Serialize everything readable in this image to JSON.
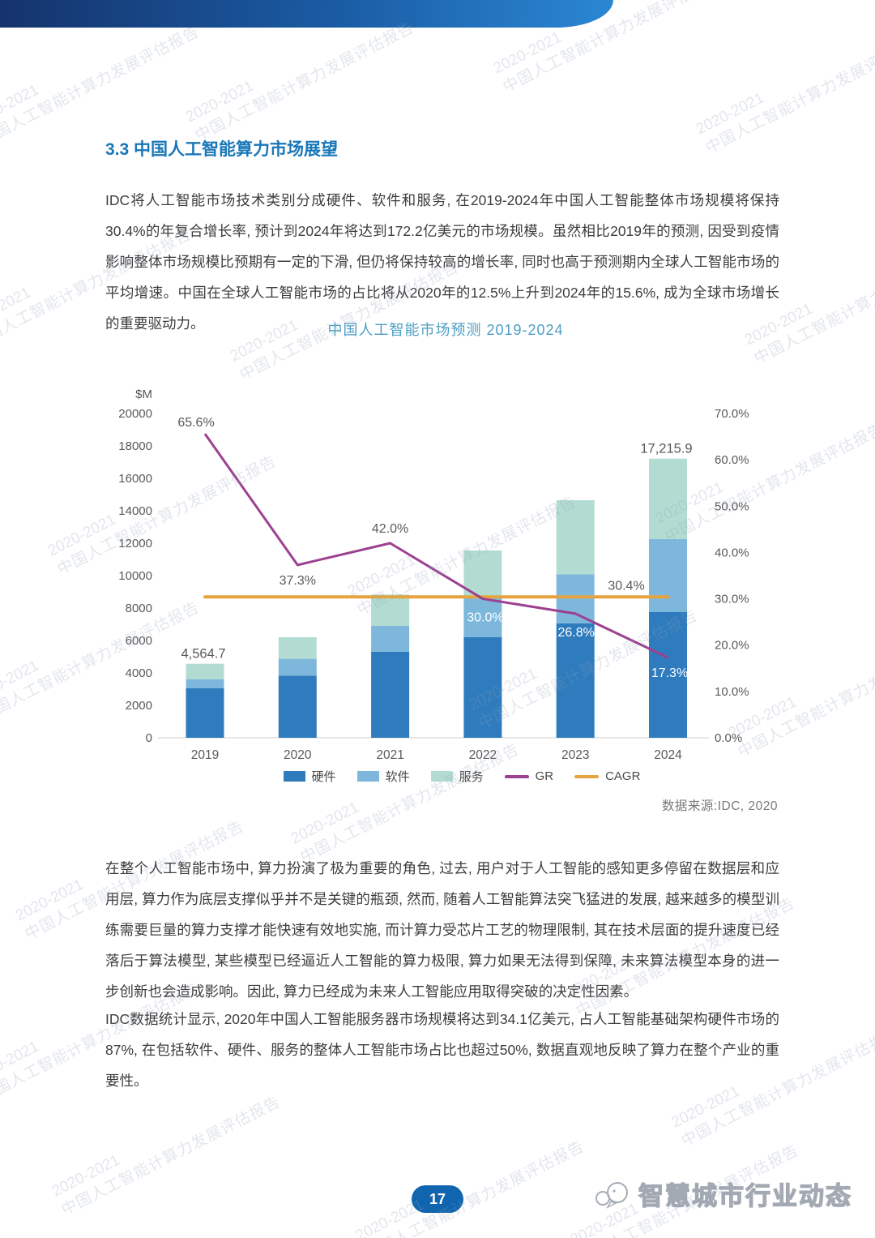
{
  "page": {
    "section_title": "3.3 中国人工智能算力市场展望",
    "paragraph1": "IDC将人工智能市场技术类别分成硬件、软件和服务, 在2019-2024年中国人工智能整体市场规模将保持30.4%的年复合增长率, 预计到2024年将达到172.2亿美元的市场规模。虽然相比2019年的预测, 因受到疫情影响整体市场规模比预期有一定的下滑, 但仍将保持较高的增长率, 同时也高于预测期内全球人工智能市场的平均增速。中国在全球人工智能市场的占比将从2020年的12.5%上升到2024年的15.6%, 成为全球市场增长的重要驱动力。",
    "paragraph2": "在整个人工智能市场中, 算力扮演了极为重要的角色, 过去, 用户对于人工智能的感知更多停留在数据层和应用层, 算力作为底层支撑似乎并不是关键的瓶颈, 然而, 随着人工智能算法突飞猛进的发展, 越来越多的模型训练需要巨量的算力支撑才能快速有效地实施, 而计算力受芯片工艺的物理限制, 其在技术层面的提升速度已经落后于算法模型, 某些模型已经逼近人工智能的算力极限, 算力如果无法得到保障, 未来算法模型本身的进一步创新也会造成影响。因此, 算力已经成为未来人工智能应用取得突破的决定性因素。",
    "paragraph3": "IDC数据统计显示, 2020年中国人工智能服务器市场规模将达到34.1亿美元, 占人工智能基础架构硬件市场的87%, 在包括软件、硬件、服务的整体人工智能市场占比也超过50%, 数据直观地反映了算力在整个产业的重要性。"
  },
  "chart_data": {
    "type": "bar",
    "subtype": "stacked-bar-with-lines",
    "title": "中国人工智能市场预测 2019-2024",
    "categories": [
      "2019",
      "2020",
      "2021",
      "2022",
      "2023",
      "2024"
    ],
    "left_axis": {
      "label": "$M",
      "min": 0,
      "max": 20000,
      "step": 2000
    },
    "right_axis": {
      "min": 0,
      "max": 70,
      "step": 10,
      "unit": "%"
    },
    "bar_series": [
      {
        "name": "硬件",
        "color": "#2e7bbd",
        "values": [
          3050,
          3830,
          5310,
          6200,
          7050,
          7750
        ]
      },
      {
        "name": "软件",
        "color": "#7db8dc",
        "values": [
          550,
          1040,
          1590,
          2480,
          3030,
          4510
        ]
      },
      {
        "name": "服务",
        "color": "#b2dcd2",
        "values": [
          964.7,
          1330,
          1930,
          2870,
          4570,
          4955.9
        ]
      }
    ],
    "line_series": [
      {
        "name": "GR",
        "color": "#9c4190",
        "values": [
          65.6,
          37.3,
          42.0,
          30.0,
          26.8,
          17.3
        ]
      },
      {
        "name": "CAGR",
        "color": "#e5a43f",
        "constant": 30.4
      }
    ],
    "gr_labels": [
      "65.6%",
      "37.3%",
      "42.0%",
      "30.0%",
      "26.8%",
      "17.3%"
    ],
    "cagr_label": "30.4%",
    "total_labels": [
      {
        "index": 0,
        "text": "4,564.7"
      },
      {
        "index": 5,
        "text": "17,215.9"
      }
    ],
    "source": "数据来源:IDC, 2020",
    "legend_position": "bottom",
    "grid": false
  },
  "footer": {
    "page_number": "17",
    "logo_text": "智慧城市行业动态"
  },
  "watermark": {
    "line1": "2020-2021",
    "line2": "中国人工智能计算力发展评估报告"
  }
}
